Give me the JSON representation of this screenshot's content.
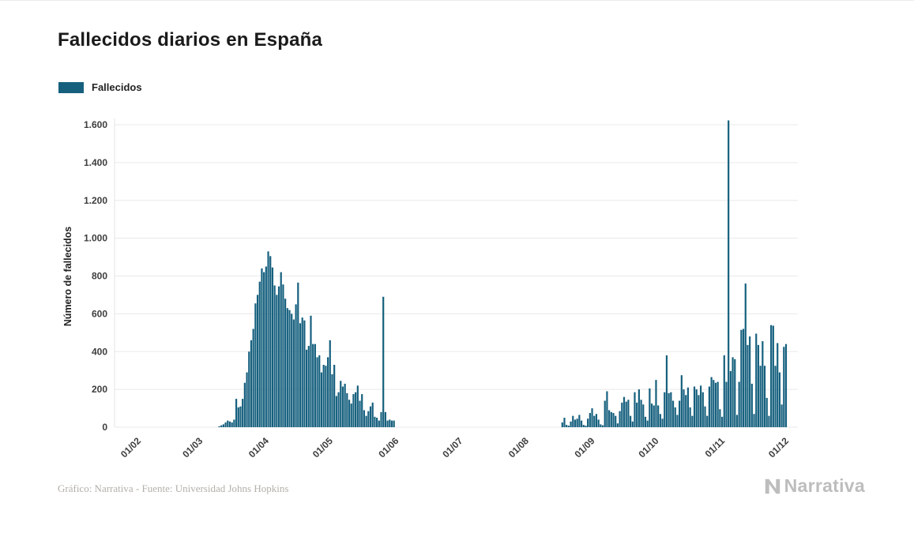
{
  "page": {
    "title": "Fallecidos diarios en España",
    "footer_credit": "Gráfico: Narrativa - Fuente: Universidad Johns Hopkins",
    "brand": "Narrativa"
  },
  "legend": {
    "label": "Fallecidos"
  },
  "colors": {
    "bar": "#16607e",
    "grid": "#e9e9e9",
    "axis_line": "#e3e3e3",
    "tick_text": "#3d3d3d",
    "title_text": "#1a1a1a",
    "footer_text": "#b3afa9",
    "brand_text": "#bdbdbd"
  },
  "chart_data": {
    "type": "bar",
    "title": "Fallecidos diarios en España",
    "series_name": "Fallecidos",
    "xlabel": "",
    "ylabel": "Número de fallecidos",
    "ylim": [
      0,
      1600
    ],
    "grid": true,
    "legend_position": "top-left",
    "y_ticks": [
      "0",
      "200",
      "400",
      "600",
      "800",
      "1.000",
      "1.200",
      "1.400",
      "1.600"
    ],
    "y_tick_values": [
      0,
      200,
      400,
      600,
      800,
      1000,
      1200,
      1400,
      1600
    ],
    "x_ticks": [
      {
        "label": "01/02",
        "day": 0
      },
      {
        "label": "01/03",
        "day": 29
      },
      {
        "label": "01/04",
        "day": 60
      },
      {
        "label": "01/05",
        "day": 90
      },
      {
        "label": "01/06",
        "day": 121
      },
      {
        "label": "01/07",
        "day": 151
      },
      {
        "label": "01/08",
        "day": 182
      },
      {
        "label": "01/09",
        "day": 213
      },
      {
        "label": "01/10",
        "day": 243
      },
      {
        "label": "01/11",
        "day": 274
      },
      {
        "label": "01/12",
        "day": 304
      }
    ],
    "days_total": 304,
    "values": [
      0,
      0,
      0,
      0,
      0,
      0,
      0,
      0,
      0,
      0,
      0,
      0,
      0,
      0,
      0,
      0,
      0,
      0,
      0,
      0,
      0,
      0,
      0,
      0,
      0,
      0,
      0,
      0,
      0,
      0,
      0,
      0,
      0,
      0,
      0,
      0,
      0,
      0,
      5,
      10,
      15,
      25,
      35,
      30,
      25,
      40,
      150,
      105,
      110,
      150,
      235,
      290,
      400,
      460,
      520,
      655,
      700,
      770,
      840,
      820,
      850,
      930,
      905,
      845,
      750,
      700,
      745,
      820,
      755,
      680,
      630,
      620,
      600,
      570,
      650,
      765,
      550,
      580,
      565,
      410,
      430,
      590,
      440,
      440,
      370,
      380,
      290,
      330,
      325,
      370,
      460,
      280,
      330,
      165,
      185,
      245,
      215,
      230,
      180,
      145,
      125,
      175,
      185,
      220,
      140,
      175,
      90,
      60,
      85,
      110,
      130,
      55,
      50,
      35,
      80,
      690,
      80,
      35,
      40,
      35,
      35,
      0,
      0,
      0,
      0,
      0,
      0,
      0,
      0,
      0,
      0,
      0,
      0,
      0,
      0,
      0,
      0,
      0,
      0,
      0,
      0,
      0,
      0,
      0,
      0,
      0,
      0,
      0,
      0,
      0,
      0,
      0,
      0,
      0,
      0,
      0,
      0,
      0,
      0,
      0,
      0,
      0,
      0,
      0,
      0,
      0,
      0,
      0,
      0,
      0,
      0,
      0,
      0,
      0,
      0,
      0,
      0,
      0,
      0,
      0,
      0,
      0,
      0,
      0,
      0,
      0,
      0,
      0,
      0,
      0,
      0,
      0,
      0,
      0,
      0,
      0,
      0,
      0,
      0,
      25,
      50,
      12,
      8,
      30,
      60,
      40,
      45,
      65,
      35,
      12,
      8,
      45,
      75,
      100,
      60,
      70,
      40,
      15,
      10,
      140,
      190,
      90,
      80,
      75,
      60,
      20,
      85,
      130,
      160,
      135,
      145,
      60,
      30,
      185,
      130,
      200,
      145,
      120,
      55,
      35,
      205,
      125,
      115,
      250,
      115,
      70,
      45,
      185,
      380,
      180,
      185,
      140,
      105,
      65,
      140,
      275,
      200,
      170,
      210,
      105,
      60,
      215,
      200,
      170,
      220,
      185,
      110,
      60,
      215,
      265,
      250,
      235,
      240,
      95,
      55,
      380,
      240,
      1623,
      297,
      370,
      360,
      65,
      240,
      515,
      520,
      760,
      435,
      480,
      230,
      70,
      495,
      435,
      325,
      455,
      325,
      155,
      60,
      540,
      537,
      325,
      445,
      290,
      120,
      425,
      440
    ]
  }
}
